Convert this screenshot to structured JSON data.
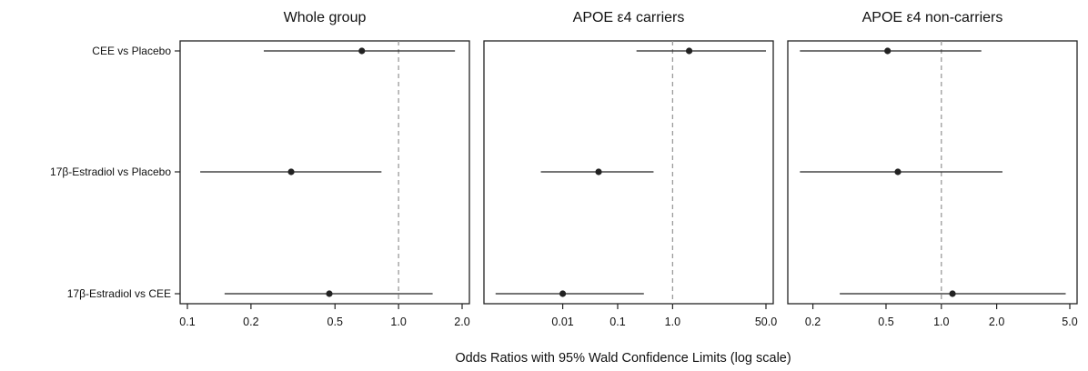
{
  "xlabel": "Odds Ratios with 95% Wald Confidence Limits (log scale)",
  "colors": {
    "point": "#222222",
    "ci_line": "#222222",
    "reference_line": "#9a9a9a",
    "frame": "#222222"
  },
  "chart_data": [
    {
      "type": "forest",
      "title": "Whole group",
      "x_scale": "log",
      "xlim": [
        0.1,
        2.0
      ],
      "xticks": [
        0.1,
        0.2,
        0.5,
        1.0,
        2.0
      ],
      "xtick_labels": [
        "0.1",
        "0.2",
        "0.5",
        "1.0",
        "2.0"
      ],
      "reference_line": 1.0,
      "categories": [
        "CEE vs Placebo",
        "17β-Estradiol vs Placebo",
        "17β-Estradiol vs CEE"
      ],
      "estimates": [
        0.67,
        0.31,
        0.47
      ],
      "ci_lower": [
        0.23,
        0.115,
        0.15
      ],
      "ci_upper": [
        1.85,
        0.83,
        1.45
      ]
    },
    {
      "type": "forest",
      "title": "APOE ε4 carriers",
      "x_scale": "log",
      "xlim": [
        0.0005,
        50.0
      ],
      "xticks": [
        0.01,
        0.1,
        1.0,
        50.0
      ],
      "xtick_labels": [
        "0.01",
        "0.1",
        "1.0",
        "50.0"
      ],
      "reference_line": 1.0,
      "categories": [
        "CEE vs Placebo",
        "17β-Estradiol vs Placebo",
        "17β-Estradiol vs CEE"
      ],
      "estimates": [
        2.0,
        0.045,
        0.01
      ],
      "ci_lower": [
        0.22,
        0.004,
        0.0006
      ],
      "ci_upper": [
        50.0,
        0.45,
        0.3
      ]
    },
    {
      "type": "forest",
      "title": "APOE ε4 non-carriers",
      "x_scale": "log",
      "xlim": [
        0.16,
        5.0
      ],
      "xticks": [
        0.2,
        0.5,
        1.0,
        2.0,
        5.0
      ],
      "xtick_labels": [
        "0.2",
        "0.5",
        "1.0",
        "2.0",
        "5.0"
      ],
      "reference_line": 1.0,
      "categories": [
        "CEE vs Placebo",
        "17β-Estradiol vs Placebo",
        "17β-Estradiol vs CEE"
      ],
      "estimates": [
        0.51,
        0.58,
        1.15
      ],
      "ci_lower": [
        0.17,
        0.17,
        0.28
      ],
      "ci_upper": [
        1.65,
        2.15,
        4.75
      ]
    }
  ]
}
